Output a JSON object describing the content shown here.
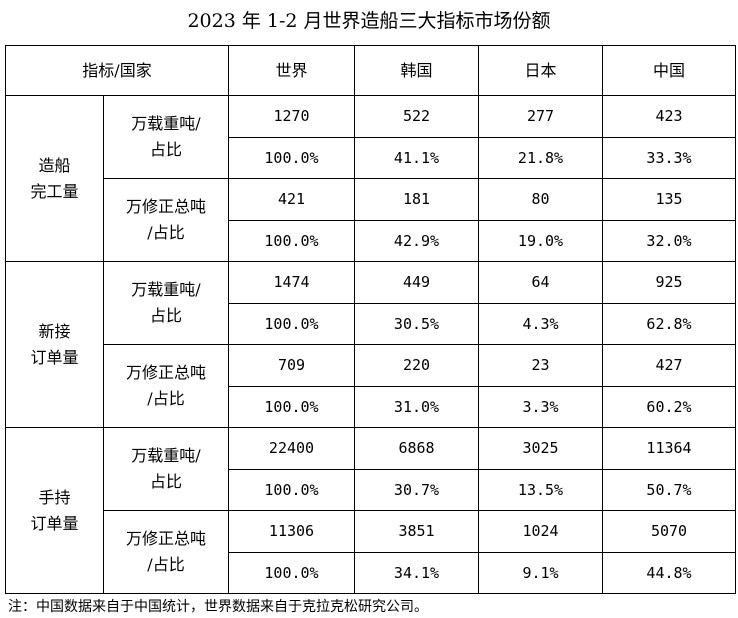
{
  "title": "2023 年 1-2 月世界造船三大指标市场份额",
  "header": {
    "indicator_country": "指标/国家",
    "columns": [
      "世界",
      "韩国",
      "日本",
      "中国"
    ]
  },
  "sections": [
    {
      "label": "造船\n完工量",
      "groups": [
        {
          "unit": "万载重吨/\n占比",
          "values": [
            "1270",
            "522",
            "277",
            "423"
          ],
          "shares": [
            "100.0%",
            "41.1%",
            "21.8%",
            "33.3%"
          ]
        },
        {
          "unit": "万修正总吨\n/占比",
          "values": [
            "421",
            "181",
            "80",
            "135"
          ],
          "shares": [
            "100.0%",
            "42.9%",
            "19.0%",
            "32.0%"
          ]
        }
      ]
    },
    {
      "label": "新接\n订单量",
      "groups": [
        {
          "unit": "万载重吨/\n占比",
          "values": [
            "1474",
            "449",
            "64",
            "925"
          ],
          "shares": [
            "100.0%",
            "30.5%",
            "4.3%",
            "62.8%"
          ]
        },
        {
          "unit": "万修正总吨\n/占比",
          "values": [
            "709",
            "220",
            "23",
            "427"
          ],
          "shares": [
            "100.0%",
            "31.0%",
            "3.3%",
            "60.2%"
          ]
        }
      ]
    },
    {
      "label": "手持\n订单量",
      "groups": [
        {
          "unit": "万载重吨/\n占比",
          "values": [
            "22400",
            "6868",
            "3025",
            "11364"
          ],
          "shares": [
            "100.0%",
            "30.7%",
            "13.5%",
            "50.7%"
          ]
        },
        {
          "unit": "万修正总吨\n/占比",
          "values": [
            "11306",
            "3851",
            "1024",
            "5070"
          ],
          "shares": [
            "100.0%",
            "34.1%",
            "9.1%",
            "44.8%"
          ]
        }
      ]
    }
  ],
  "note": "注：中国数据来自于中国统计，世界数据来自于克拉克松研究公司。"
}
